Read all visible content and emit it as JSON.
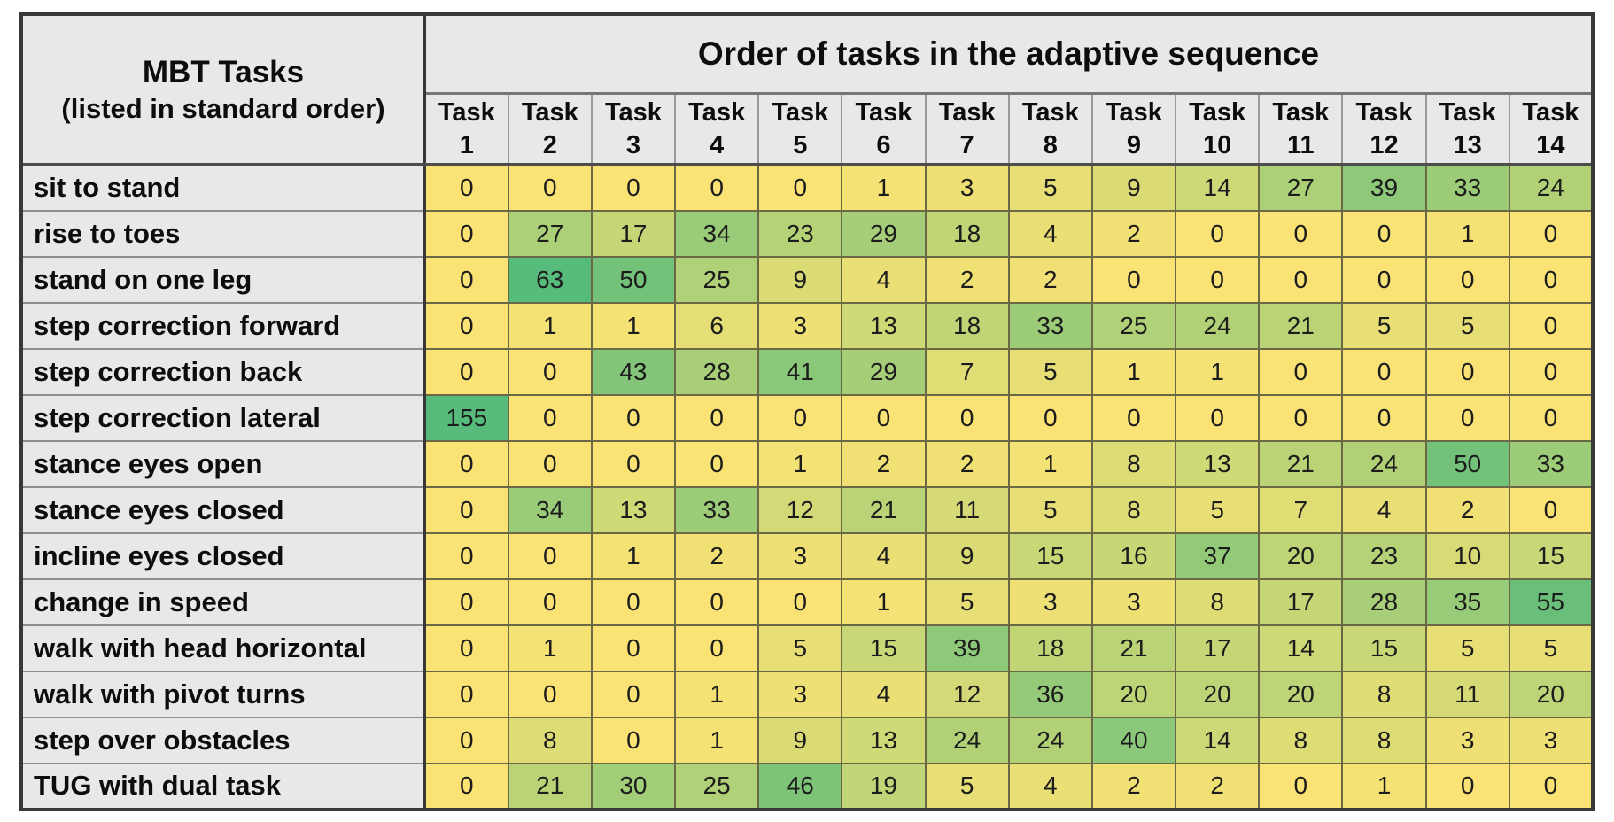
{
  "table": {
    "corner_line1": "MBT Tasks",
    "corner_line2": "(listed in standard order)"
  },
  "chart_data": {
    "type": "heatmap",
    "title": "Order of tasks in the adaptive sequence",
    "row_axis_label": "MBT Tasks (listed in standard order)",
    "columns": [
      "Task 1",
      "Task 2",
      "Task 3",
      "Task 4",
      "Task 5",
      "Task 6",
      "Task 7",
      "Task 8",
      "Task 9",
      "Task 10",
      "Task 11",
      "Task 12",
      "Task 13",
      "Task 14"
    ],
    "rows": [
      "sit to stand",
      "rise to toes",
      "stand on one leg",
      "step correction forward",
      "step correction back",
      "step correction lateral",
      "stance eyes open",
      "stance eyes closed",
      "incline eyes closed",
      "change in speed",
      "walk with head horizontal",
      "walk with pivot turns",
      "step over obstacles",
      "TUG with dual task"
    ],
    "values": [
      [
        0,
        0,
        0,
        0,
        0,
        1,
        3,
        5,
        9,
        14,
        27,
        39,
        33,
        24
      ],
      [
        0,
        27,
        17,
        34,
        23,
        29,
        18,
        4,
        2,
        0,
        0,
        0,
        1,
        0
      ],
      [
        0,
        63,
        50,
        25,
        9,
        4,
        2,
        2,
        0,
        0,
        0,
        0,
        0,
        0
      ],
      [
        0,
        1,
        1,
        6,
        3,
        13,
        18,
        33,
        25,
        24,
        21,
        5,
        5,
        0
      ],
      [
        0,
        0,
        43,
        28,
        41,
        29,
        7,
        5,
        1,
        1,
        0,
        0,
        0,
        0
      ],
      [
        155,
        0,
        0,
        0,
        0,
        0,
        0,
        0,
        0,
        0,
        0,
        0,
        0,
        0
      ],
      [
        0,
        0,
        0,
        0,
        1,
        2,
        2,
        1,
        8,
        13,
        21,
        24,
        50,
        33
      ],
      [
        0,
        34,
        13,
        33,
        12,
        21,
        11,
        5,
        8,
        5,
        7,
        4,
        2,
        0
      ],
      [
        0,
        0,
        1,
        2,
        3,
        4,
        9,
        15,
        16,
        37,
        20,
        23,
        10,
        15
      ],
      [
        0,
        0,
        0,
        0,
        0,
        1,
        5,
        3,
        3,
        8,
        17,
        28,
        35,
        55
      ],
      [
        0,
        1,
        0,
        0,
        5,
        15,
        39,
        18,
        21,
        17,
        14,
        15,
        5,
        5
      ],
      [
        0,
        0,
        0,
        1,
        3,
        4,
        12,
        36,
        20,
        20,
        20,
        8,
        11,
        20
      ],
      [
        0,
        8,
        0,
        1,
        9,
        13,
        24,
        24,
        40,
        14,
        8,
        8,
        3,
        3
      ],
      [
        0,
        21,
        30,
        25,
        46,
        19,
        5,
        4,
        2,
        2,
        0,
        1,
        0,
        0
      ]
    ],
    "value_range": [
      0,
      155
    ],
    "color_scale": {
      "low_color": "#FAE374",
      "high_color": "#57BB7B",
      "full_green_at": 63
    },
    "header_bg": "#E8E8E8",
    "grid_color": "#6B6845",
    "legend": "none"
  }
}
